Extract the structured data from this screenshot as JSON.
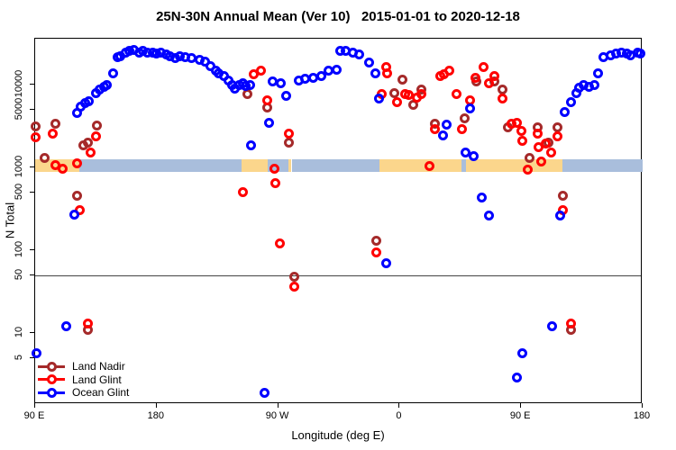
{
  "title": "25N-30N Annual Mean (Ver 10)   2015-01-01 to 2020-12-18",
  "chart_data": {
    "type": "scatter",
    "title": "25N-30N Annual Mean (Ver 10)   2015-01-01 to 2020-12-18",
    "xlabel": "Longitude (deg E)",
    "ylabel": "N Total",
    "x_axis": {
      "note": "longitude wraps eastward: 90E to 180 to 90W to 0 to 90E to 180; stored as continuous deg 90-540",
      "range": [
        90,
        540
      ],
      "ticks": [
        90,
        180,
        270,
        360,
        450,
        540
      ],
      "tick_labels": [
        "90 E",
        "180",
        "90 W",
        "0",
        "90 E",
        "180"
      ]
    },
    "y_axis": {
      "scale": "log",
      "range": [
        1.4,
        35800
      ],
      "ticks": [
        5,
        10,
        50,
        100,
        500,
        1000,
        5000,
        10000
      ],
      "tick_labels": [
        "5",
        "10",
        "50",
        "100",
        "500",
        "1000",
        "5000",
        "10000"
      ]
    },
    "reference_line": {
      "value": 50,
      "color": "#444444"
    },
    "map_band": {
      "description": "land/ocean strip along 25N-30N drawn at N=1000",
      "value_top": 1265,
      "value_bottom": 885,
      "land_color": "#FBD68C",
      "ocean_color": "#A9BEDC",
      "segments": [
        {
          "from": 90,
          "to": 122.5,
          "surface": "land"
        },
        {
          "from": 122.5,
          "to": 243,
          "surface": "ocean"
        },
        {
          "from": 243,
          "to": 262.5,
          "surface": "land"
        },
        {
          "from": 262.5,
          "to": 277.5,
          "surface": "ocean"
        },
        {
          "from": 277.5,
          "to": 280,
          "surface": "land"
        },
        {
          "from": 280,
          "to": 345,
          "surface": "ocean"
        },
        {
          "from": 345,
          "to": 406,
          "surface": "land"
        },
        {
          "from": 406,
          "to": 409,
          "surface": "ocean"
        },
        {
          "from": 409,
          "to": 480.5,
          "surface": "land"
        },
        {
          "from": 480.5,
          "to": 540,
          "surface": "ocean"
        }
      ]
    },
    "legend": {
      "position": "bottom-left",
      "entries": [
        {
          "name": "Land Nadir",
          "color": "#A52A2A"
        },
        {
          "name": "Land Glint",
          "color": "#FF0000"
        },
        {
          "name": "Ocean Glint",
          "color": "#0000FF"
        }
      ]
    },
    "series": [
      {
        "name": "Land Nadir",
        "color": "#A52A2A",
        "points": [
          [
            90,
            3100
          ],
          [
            97,
            1290
          ],
          [
            105,
            3330
          ],
          [
            121,
            450
          ],
          [
            126,
            1870
          ],
          [
            129,
            2000
          ],
          [
            129,
            11
          ],
          [
            136,
            3240
          ],
          [
            247,
            7780
          ],
          [
            262,
            5350
          ],
          [
            278,
            2000
          ],
          [
            282,
            48
          ],
          [
            343,
            129
          ],
          [
            356,
            7800
          ],
          [
            362,
            11600
          ],
          [
            370,
            5750
          ],
          [
            376,
            8830
          ],
          [
            386,
            3330
          ],
          [
            408,
            3960
          ],
          [
            417,
            10800
          ],
          [
            430,
            10800
          ],
          [
            436,
            8830
          ],
          [
            440,
            3080
          ],
          [
            456,
            1290
          ],
          [
            462,
            3080
          ],
          [
            470,
            2010
          ],
          [
            477,
            3080
          ],
          [
            481,
            450
          ],
          [
            487,
            11
          ]
        ]
      },
      {
        "name": "Land Glint",
        "color": "#FF0000",
        "points": [
          [
            90,
            2290
          ],
          [
            103,
            2590
          ],
          [
            105,
            1075
          ],
          [
            110,
            975
          ],
          [
            121,
            1130
          ],
          [
            123,
            308
          ],
          [
            129,
            13
          ],
          [
            131,
            1530
          ],
          [
            135,
            2400
          ],
          [
            244,
            509
          ],
          [
            252,
            13200
          ],
          [
            257,
            14900
          ],
          [
            262,
            6540
          ],
          [
            267,
            960
          ],
          [
            268,
            650
          ],
          [
            271,
            122
          ],
          [
            278,
            2590
          ],
          [
            282,
            36
          ],
          [
            343,
            95
          ],
          [
            347,
            7780
          ],
          [
            350,
            16500
          ],
          [
            351,
            13800
          ],
          [
            358,
            6220
          ],
          [
            364,
            7780
          ],
          [
            367,
            7600
          ],
          [
            373,
            7040
          ],
          [
            376,
            7780
          ],
          [
            382,
            1050
          ],
          [
            386,
            2930
          ],
          [
            390,
            12800
          ],
          [
            393,
            13200
          ],
          [
            397,
            14600
          ],
          [
            402,
            7780
          ],
          [
            406,
            2930
          ],
          [
            412,
            6540
          ],
          [
            416,
            12200
          ],
          [
            422,
            16500
          ],
          [
            426,
            10300
          ],
          [
            430,
            12800
          ],
          [
            436,
            6870
          ],
          [
            443,
            3330
          ],
          [
            447,
            3490
          ],
          [
            450,
            2730
          ],
          [
            451,
            2120
          ],
          [
            455,
            950
          ],
          [
            462,
            2590
          ],
          [
            463,
            1780
          ],
          [
            465,
            1190
          ],
          [
            468,
            1960
          ],
          [
            472,
            1530
          ],
          [
            477,
            2400
          ],
          [
            481,
            308
          ],
          [
            487,
            13
          ]
        ]
      },
      {
        "name": "Ocean Glint",
        "color": "#0000FF",
        "points": [
          [
            91,
            5.7
          ],
          [
            113,
            12
          ],
          [
            119,
            272
          ],
          [
            121,
            4600
          ],
          [
            124,
            5480
          ],
          [
            127,
            6060
          ],
          [
            130,
            6370
          ],
          [
            135,
            7980
          ],
          [
            138,
            8830
          ],
          [
            141,
            9510
          ],
          [
            143,
            10000
          ],
          [
            148,
            13800
          ],
          [
            151,
            21700
          ],
          [
            153,
            22300
          ],
          [
            157,
            24600
          ],
          [
            160,
            25900
          ],
          [
            163,
            26500
          ],
          [
            167,
            24600
          ],
          [
            170,
            25900
          ],
          [
            173,
            24600
          ],
          [
            177,
            24600
          ],
          [
            180,
            24000
          ],
          [
            183,
            24600
          ],
          [
            187,
            23400
          ],
          [
            190,
            22300
          ],
          [
            194,
            21200
          ],
          [
            197,
            22300
          ],
          [
            201,
            21700
          ],
          [
            206,
            21200
          ],
          [
            212,
            20100
          ],
          [
            216,
            19100
          ],
          [
            220,
            16900
          ],
          [
            224,
            14900
          ],
          [
            226,
            13800
          ],
          [
            230,
            12800
          ],
          [
            233,
            11300
          ],
          [
            236,
            10000
          ],
          [
            238,
            9050
          ],
          [
            241,
            10000
          ],
          [
            244,
            10300
          ],
          [
            246,
            9740
          ],
          [
            249,
            10000
          ],
          [
            250,
            1870
          ],
          [
            260,
            1.9
          ],
          [
            263,
            3490
          ],
          [
            266,
            10800
          ],
          [
            272,
            10300
          ],
          [
            276,
            7410
          ],
          [
            285,
            11300
          ],
          [
            290,
            11900
          ],
          [
            296,
            12200
          ],
          [
            302,
            12800
          ],
          [
            307,
            14600
          ],
          [
            313,
            15300
          ],
          [
            316,
            25300
          ],
          [
            320,
            25900
          ],
          [
            325,
            24600
          ],
          [
            330,
            23400
          ],
          [
            337,
            18700
          ],
          [
            342,
            13800
          ],
          [
            345,
            6870
          ],
          [
            350,
            69
          ],
          [
            392,
            2420
          ],
          [
            395,
            3260
          ],
          [
            409,
            1530
          ],
          [
            412,
            5100
          ],
          [
            415,
            1370
          ],
          [
            421,
            435
          ],
          [
            426,
            265
          ],
          [
            447,
            2.9
          ],
          [
            451,
            5.7
          ],
          [
            473,
            12
          ],
          [
            479,
            265
          ],
          [
            482,
            4720
          ],
          [
            487,
            6220
          ],
          [
            491,
            7980
          ],
          [
            493,
            9280
          ],
          [
            496,
            10000
          ],
          [
            500,
            9500
          ],
          [
            504,
            10000
          ],
          [
            507,
            13800
          ],
          [
            511,
            21700
          ],
          [
            516,
            22800
          ],
          [
            520,
            24000
          ],
          [
            524,
            24600
          ],
          [
            528,
            24000
          ],
          [
            531,
            22800
          ],
          [
            536,
            24600
          ],
          [
            538,
            24000
          ]
        ]
      }
    ]
  }
}
